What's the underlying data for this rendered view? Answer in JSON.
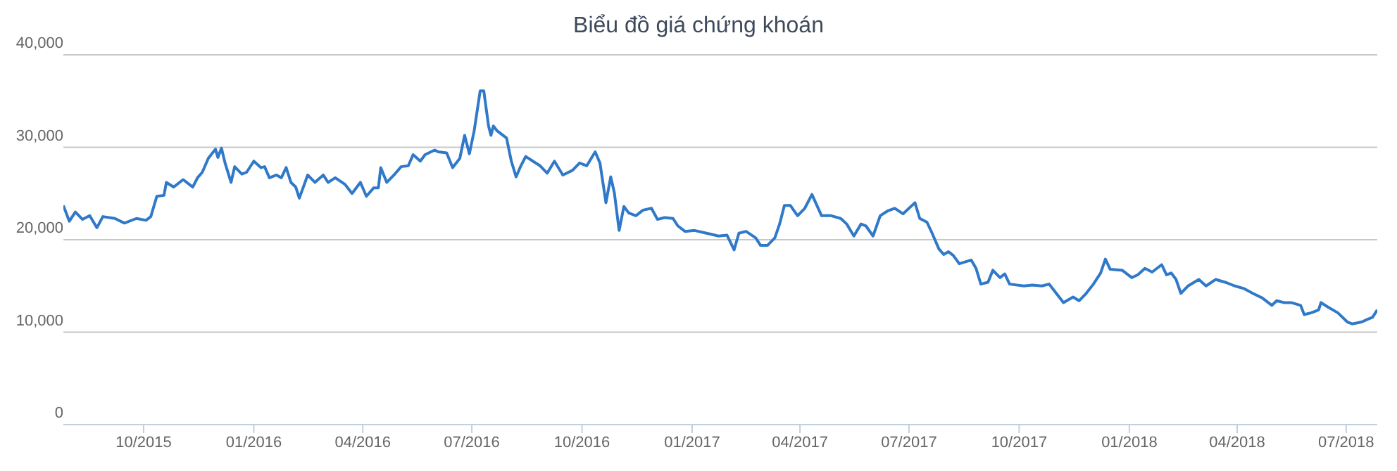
{
  "chart_data": {
    "type": "line",
    "title": "Biểu đồ giá chứng khoán",
    "xlim": [
      "2015-07-26",
      "2018-07-27"
    ],
    "xticks": [
      {
        "value": "2015-10-01",
        "label": "10/2015"
      },
      {
        "value": "2016-01-01",
        "label": "01/2016"
      },
      {
        "value": "2016-04-01",
        "label": "04/2016"
      },
      {
        "value": "2016-07-01",
        "label": "07/2016"
      },
      {
        "value": "2016-10-01",
        "label": "10/2016"
      },
      {
        "value": "2017-01-01",
        "label": "01/2017"
      },
      {
        "value": "2017-04-01",
        "label": "04/2017"
      },
      {
        "value": "2017-07-01",
        "label": "07/2017"
      },
      {
        "value": "2017-10-01",
        "label": "10/2017"
      },
      {
        "value": "2018-01-01",
        "label": "01/2018"
      },
      {
        "value": "2018-04-01",
        "label": "04/2018"
      },
      {
        "value": "2018-07-01",
        "label": "07/2018"
      }
    ],
    "ylim": [
      0,
      40000
    ],
    "yticks": [
      0,
      {
        "value": 10000,
        "label": "10,000"
      },
      {
        "value": 20000,
        "label": "20,000"
      },
      {
        "value": 30000,
        "label": "30,000"
      },
      {
        "value": 40000,
        "label": "40,000"
      }
    ],
    "grid": "y",
    "legend": false,
    "marker": "none",
    "line_style": "solid",
    "x": [
      "2015-07-26",
      "2015-07-31",
      "2015-08-05",
      "2015-08-11",
      "2015-08-17",
      "2015-08-23",
      "2015-08-28",
      "2015-09-07",
      "2015-09-15",
      "2015-09-25",
      "2015-10-03",
      "2015-10-07",
      "2015-10-12",
      "2015-10-18",
      "2015-10-20",
      "2015-10-26",
      "2015-11-03",
      "2015-11-11",
      "2015-11-15",
      "2015-11-19",
      "2015-11-24",
      "2015-11-30",
      "2015-12-02",
      "2015-12-05",
      "2015-12-08",
      "2015-12-13",
      "2015-12-16",
      "2015-12-22",
      "2015-12-26",
      "2016-01-01",
      "2016-01-07",
      "2016-01-10",
      "2016-01-14",
      "2016-01-20",
      "2016-01-24",
      "2016-01-28",
      "2016-02-01",
      "2016-02-05",
      "2016-02-08",
      "2016-02-15",
      "2016-02-21",
      "2016-02-28",
      "2016-03-03",
      "2016-03-09",
      "2016-03-17",
      "2016-03-23",
      "2016-03-30",
      "2016-04-04",
      "2016-04-10",
      "2016-04-14",
      "2016-04-16",
      "2016-04-21",
      "2016-04-27",
      "2016-05-03",
      "2016-05-09",
      "2016-05-13",
      "2016-05-19",
      "2016-05-23",
      "2016-05-31",
      "2016-06-03",
      "2016-06-10",
      "2016-06-15",
      "2016-06-21",
      "2016-06-25",
      "2016-06-29",
      "2016-07-03",
      "2016-07-08",
      "2016-07-11",
      "2016-07-15",
      "2016-07-17",
      "2016-07-19",
      "2016-07-22",
      "2016-07-30",
      "2016-08-03",
      "2016-08-07",
      "2016-08-11",
      "2016-08-15",
      "2016-08-21",
      "2016-08-27",
      "2016-09-02",
      "2016-09-08",
      "2016-09-15",
      "2016-09-23",
      "2016-09-29",
      "2016-10-05",
      "2016-10-12",
      "2016-10-16",
      "2016-10-21",
      "2016-10-25",
      "2016-10-28",
      "2016-11-01",
      "2016-11-05",
      "2016-11-09",
      "2016-11-15",
      "2016-11-21",
      "2016-11-28",
      "2016-12-03",
      "2016-12-09",
      "2016-12-16",
      "2016-12-20",
      "2016-12-26",
      "2017-01-03",
      "2017-01-13",
      "2017-01-23",
      "2017-01-30",
      "2017-02-05",
      "2017-02-09",
      "2017-02-15",
      "2017-02-23",
      "2017-02-27",
      "2017-03-05",
      "2017-03-11",
      "2017-03-15",
      "2017-03-19",
      "2017-03-24",
      "2017-03-30",
      "2017-04-05",
      "2017-04-11",
      "2017-04-19",
      "2017-04-27",
      "2017-05-05",
      "2017-05-10",
      "2017-05-16",
      "2017-05-22",
      "2017-05-26",
      "2017-06-01",
      "2017-06-07",
      "2017-06-13",
      "2017-06-19",
      "2017-06-26",
      "2017-07-06",
      "2017-07-10",
      "2017-07-16",
      "2017-07-20",
      "2017-07-26",
      "2017-07-30",
      "2017-08-03",
      "2017-08-07",
      "2017-08-12",
      "2017-08-22",
      "2017-08-26",
      "2017-08-30",
      "2017-09-05",
      "2017-09-09",
      "2017-09-15",
      "2017-09-19",
      "2017-09-23",
      "2017-10-05",
      "2017-10-12",
      "2017-10-20",
      "2017-10-26",
      "2017-11-01",
      "2017-11-07",
      "2017-11-15",
      "2017-11-20",
      "2017-11-26",
      "2017-12-02",
      "2017-12-08",
      "2017-12-12",
      "2017-12-16",
      "2017-12-26",
      "2018-01-03",
      "2018-01-08",
      "2018-01-14",
      "2018-01-20",
      "2018-01-28",
      "2018-02-01",
      "2018-02-05",
      "2018-02-09",
      "2018-02-13",
      "2018-02-19",
      "2018-02-28",
      "2018-03-06",
      "2018-03-14",
      "2018-03-22",
      "2018-03-30",
      "2018-04-07",
      "2018-04-14",
      "2018-04-22",
      "2018-04-30",
      "2018-05-04",
      "2018-05-10",
      "2018-05-16",
      "2018-05-24",
      "2018-05-27",
      "2018-06-02",
      "2018-06-08",
      "2018-06-10",
      "2018-06-16",
      "2018-06-24",
      "2018-07-02",
      "2018-07-06",
      "2018-07-14",
      "2018-07-19",
      "2018-07-23",
      "2018-07-27"
    ],
    "series": [
      {
        "color": "#3079c9",
        "values": [
          23700,
          22000,
          23000,
          22200,
          22600,
          21300,
          22500,
          22300,
          21800,
          22300,
          22100,
          22500,
          24700,
          24800,
          26200,
          25700,
          26500,
          25700,
          26700,
          27300,
          28800,
          29800,
          28900,
          29900,
          28300,
          26200,
          27900,
          27100,
          27300,
          28500,
          27800,
          27900,
          26700,
          27000,
          26700,
          27800,
          26200,
          25700,
          24500,
          27000,
          26200,
          27000,
          26200,
          26700,
          26000,
          25000,
          26200,
          24700,
          25600,
          25600,
          27800,
          26200,
          27000,
          27900,
          28000,
          29200,
          28500,
          29200,
          29700,
          29500,
          29400,
          27800,
          28800,
          31300,
          29300,
          31800,
          36100,
          36100,
          32300,
          31300,
          32300,
          31800,
          31000,
          28500,
          26800,
          28000,
          29000,
          28500,
          28000,
          27200,
          28500,
          27000,
          27500,
          28300,
          28000,
          29500,
          28300,
          24000,
          26800,
          25100,
          21000,
          23600,
          22900,
          22600,
          23200,
          23400,
          22200,
          22400,
          22300,
          21500,
          20900,
          21000,
          20700,
          20400,
          20500,
          18900,
          20700,
          20900,
          20200,
          19400,
          19400,
          20200,
          21700,
          23700,
          23700,
          22600,
          23400,
          24900,
          22600,
          22600,
          22300,
          21700,
          20400,
          21700,
          21500,
          20400,
          22600,
          23100,
          23400,
          22800,
          24000,
          22300,
          21900,
          20800,
          19000,
          18400,
          18700,
          18300,
          17400,
          17800,
          16900,
          15200,
          15400,
          16700,
          15900,
          16300,
          15200,
          15000,
          15100,
          15000,
          15200,
          14200,
          13200,
          13800,
          13400,
          14200,
          15200,
          16400,
          17900,
          16800,
          16700,
          15900,
          16200,
          16900,
          16500,
          17300,
          16200,
          16400,
          15700,
          14200,
          15000,
          15700,
          15000,
          15700,
          15400,
          15000,
          14700,
          14200,
          13700,
          12900,
          13400,
          13200,
          13200,
          12900,
          11900,
          12100,
          12400,
          13200,
          12700,
          12100,
          11100,
          10900,
          11100,
          11400,
          11600,
          12400
        ]
      }
    ]
  }
}
